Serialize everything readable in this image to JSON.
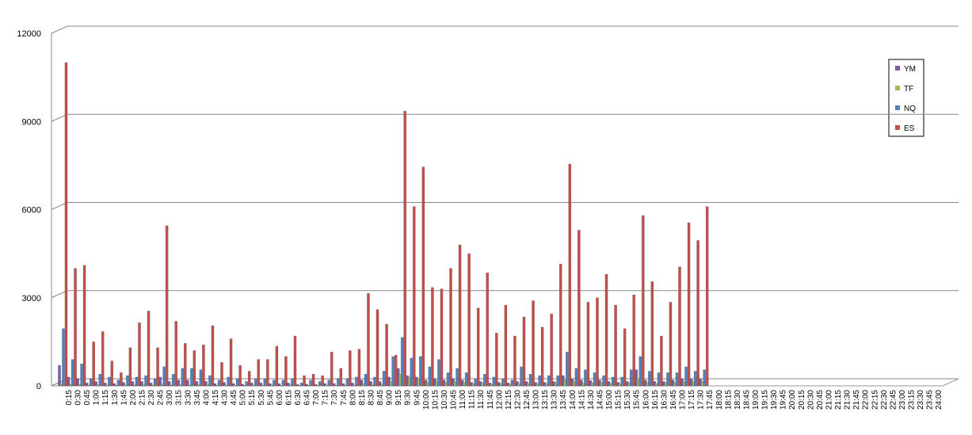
{
  "chart_data": {
    "type": "bar",
    "categories": [
      "0:15",
      "0:30",
      "0:45",
      "1:00",
      "1:15",
      "1:30",
      "1:45",
      "2:00",
      "2:15",
      "2:30",
      "2:45",
      "3:00",
      "3:15",
      "3:30",
      "3:45",
      "4:00",
      "4:15",
      "4:30",
      "4:45",
      "5:00",
      "5:15",
      "5:30",
      "5:45",
      "6:00",
      "6:15",
      "6:30",
      "6:45",
      "7:00",
      "7:15",
      "7:30",
      "7:45",
      "8:00",
      "8:15",
      "8:30",
      "8:45",
      "9:00",
      "9:15",
      "9:30",
      "9:45",
      "10:00",
      "10:15",
      "10:30",
      "10:45",
      "11:00",
      "11:15",
      "11:30",
      "11:45",
      "12:00",
      "12:15",
      "12:30",
      "12:45",
      "13:00",
      "13:15",
      "13:30",
      "13:45",
      "14:00",
      "14:15",
      "14:30",
      "14:45",
      "15:00",
      "15:15",
      "15:30",
      "15:45",
      "16:00",
      "16:15",
      "16:30",
      "16:45",
      "17:00",
      "17:15",
      "17:30",
      "17:45",
      "18:00",
      "18:15",
      "18:30",
      "18:45",
      "19:00",
      "19:15",
      "19:30",
      "19:45",
      "20:00",
      "20:15",
      "20:30",
      "20:45",
      "21:00",
      "21:15",
      "21:30",
      "21:45",
      "22:00",
      "22:15",
      "22:30",
      "22:45",
      "23:00",
      "23:15",
      "23:30",
      "23:45",
      "24:00"
    ],
    "series": [
      {
        "name": "YM",
        "color": "#7b5ea7",
        "values": [
          700,
          300,
          250,
          100,
          150,
          100,
          80,
          120,
          150,
          150,
          100,
          300,
          150,
          200,
          200,
          150,
          150,
          80,
          120,
          80,
          60,
          100,
          100,
          80,
          80,
          100,
          50,
          60,
          50,
          80,
          80,
          80,
          100,
          200,
          150,
          150,
          300,
          600,
          350,
          300,
          200,
          250,
          200,
          250,
          200,
          120,
          150,
          100,
          120,
          100,
          150,
          150,
          120,
          120,
          150,
          350,
          250,
          200,
          180,
          200,
          150,
          120,
          150,
          550,
          200,
          150,
          150,
          200,
          250,
          250,
          250,
          null,
          null,
          null,
          null,
          null,
          null,
          null,
          null,
          null,
          null,
          null,
          null,
          null,
          null,
          null,
          null,
          null,
          null,
          null,
          null,
          null,
          null,
          null,
          null,
          null
        ]
      },
      {
        "name": "TF",
        "color": "#9bbb59",
        "values": [
          80,
          50,
          50,
          30,
          40,
          30,
          20,
          30,
          40,
          50,
          30,
          60,
          40,
          40,
          30,
          40,
          50,
          20,
          30,
          20,
          20,
          30,
          30,
          30,
          20,
          40,
          20,
          20,
          20,
          30,
          20,
          30,
          30,
          80,
          60,
          60,
          150,
          400,
          300,
          250,
          120,
          150,
          120,
          150,
          120,
          80,
          100,
          60,
          80,
          60,
          80,
          90,
          70,
          80,
          120,
          200,
          150,
          100,
          100,
          120,
          80,
          80,
          100,
          250,
          120,
          80,
          100,
          120,
          150,
          150,
          150,
          null,
          null,
          null,
          null,
          null,
          null,
          null,
          null,
          null,
          null,
          null,
          null,
          null,
          null,
          null,
          null,
          null,
          null,
          null,
          null,
          null,
          null,
          null,
          null,
          null
        ]
      },
      {
        "name": "NQ",
        "color": "#4f81bd",
        "values": [
          1950,
          900,
          750,
          250,
          400,
          300,
          200,
          350,
          300,
          350,
          250,
          650,
          400,
          600,
          600,
          550,
          350,
          200,
          300,
          250,
          150,
          250,
          250,
          200,
          200,
          250,
          100,
          200,
          150,
          200,
          250,
          250,
          300,
          400,
          300,
          500,
          1000,
          1650,
          950,
          1000,
          650,
          900,
          450,
          600,
          450,
          250,
          400,
          300,
          250,
          200,
          650,
          400,
          350,
          350,
          350,
          1150,
          600,
          550,
          450,
          350,
          300,
          300,
          550,
          1000,
          500,
          450,
          450,
          450,
          650,
          500,
          550,
          null,
          null,
          null,
          null,
          null,
          null,
          null,
          null,
          null,
          null,
          null,
          null,
          null,
          null,
          null,
          null,
          null,
          null,
          null,
          null,
          null,
          null,
          null,
          null,
          null
        ]
      },
      {
        "name": "ES",
        "color": "#c0504d",
        "values": [
          11000,
          4000,
          4100,
          1500,
          1850,
          850,
          450,
          1300,
          2150,
          2550,
          1300,
          5450,
          2200,
          1450,
          1200,
          1400,
          2050,
          800,
          1600,
          700,
          500,
          900,
          900,
          1350,
          1000,
          1700,
          350,
          400,
          350,
          1150,
          600,
          1200,
          1250,
          3150,
          2600,
          2100,
          1050,
          9350,
          6100,
          7450,
          3350,
          3300,
          4000,
          4800,
          4500,
          2650,
          3850,
          1800,
          2750,
          1700,
          2350,
          2900,
          2000,
          2450,
          4150,
          7550,
          5300,
          2850,
          3000,
          3800,
          2750,
          1950,
          3100,
          5800,
          3550,
          1700,
          2850,
          4050,
          5550,
          4950,
          6100,
          null,
          null,
          null,
          null,
          null,
          null,
          null,
          null,
          null,
          null,
          null,
          null,
          null,
          null,
          null,
          null,
          null,
          null,
          null,
          null,
          null,
          null,
          null,
          null,
          null
        ]
      }
    ],
    "ylim": [
      0,
      12000
    ],
    "yticks": [
      0,
      3000,
      6000,
      9000,
      12000
    ],
    "grid": true,
    "legend": "right"
  }
}
